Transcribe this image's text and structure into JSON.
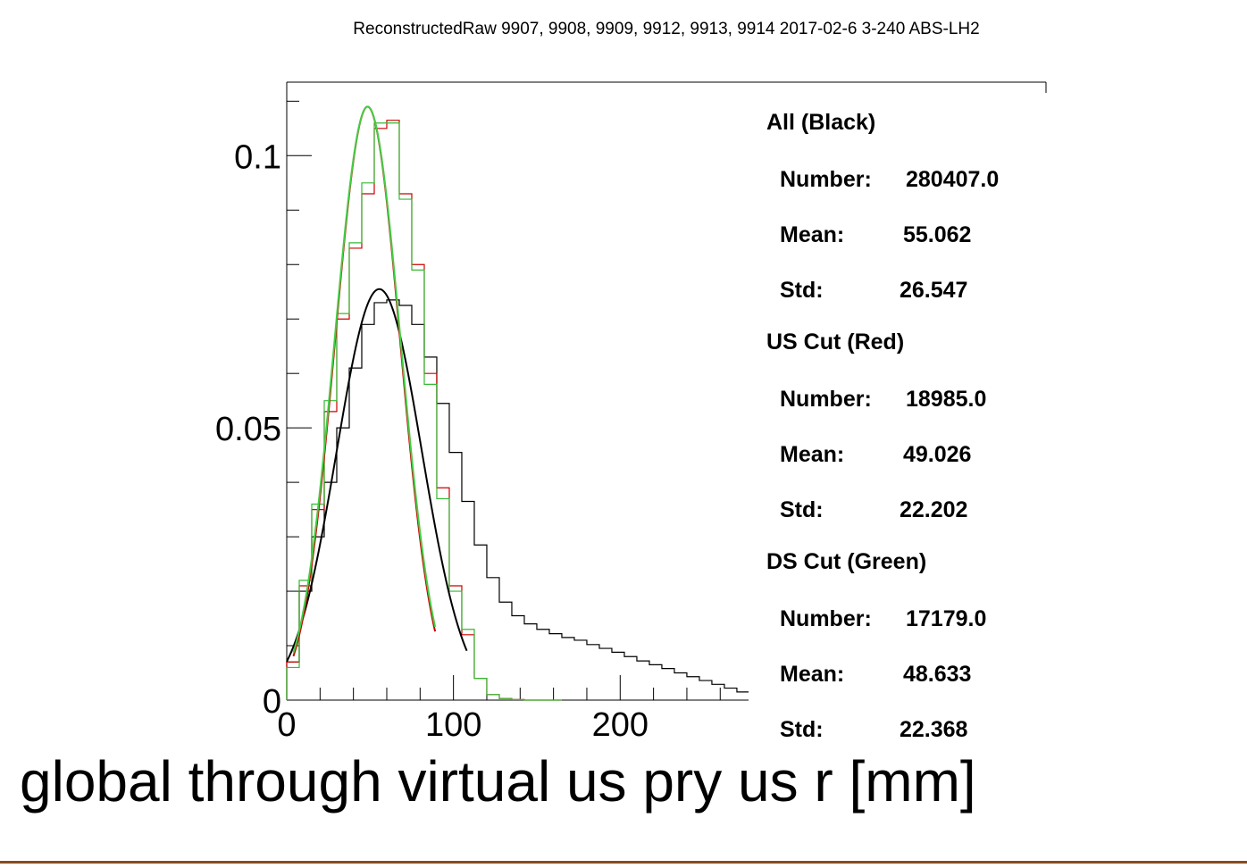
{
  "chart_data": {
    "type": "histogram",
    "title": "ReconstructedRaw 9907, 9908, 9909, 9912, 9913, 9914 2017-02-6 3-240 ABS-LH2",
    "xlabel": "global through virtual us pry us r [mm]",
    "ylabel": "",
    "xlim": [
      0,
      277
    ],
    "ylim": [
      0,
      0.1135
    ],
    "x_ticks": [
      0,
      100,
      200
    ],
    "y_ticks": [
      0,
      0.05,
      0.1
    ],
    "x_tick_labels": [
      "0",
      "100",
      "200"
    ],
    "y_tick_labels": [
      "0",
      "0.05",
      "0.1"
    ],
    "bin_width": 7.5,
    "series": [
      {
        "name": "All (Black)",
        "color": "#000000",
        "bin_start": 0,
        "values": [
          0.007,
          0.02,
          0.03,
          0.04,
          0.05,
          0.061,
          0.069,
          0.073,
          0.0735,
          0.0725,
          0.069,
          0.063,
          0.0545,
          0.0455,
          0.0365,
          0.0285,
          0.0225,
          0.018,
          0.0155,
          0.014,
          0.013,
          0.0122,
          0.0115,
          0.011,
          0.0102,
          0.0095,
          0.0088,
          0.008,
          0.0072,
          0.0065,
          0.0058,
          0.005,
          0.0043,
          0.0036,
          0.0029,
          0.0022,
          0.0015
        ]
      },
      {
        "name": "US Cut (Red)",
        "color": "#cc0000",
        "bin_start": 0,
        "values": [
          0.007,
          0.021,
          0.035,
          0.053,
          0.07,
          0.083,
          0.093,
          0.105,
          0.1065,
          0.093,
          0.08,
          0.06,
          0.039,
          0.021,
          0.012,
          0.004,
          0.001,
          0.0003,
          0.0001,
          0,
          0,
          0
        ]
      },
      {
        "name": "DS Cut (Green)",
        "color": "#33bb33",
        "bin_start": 0,
        "values": [
          0.006,
          0.022,
          0.036,
          0.055,
          0.071,
          0.084,
          0.095,
          0.106,
          0.106,
          0.092,
          0.079,
          0.058,
          0.037,
          0.02,
          0.013,
          0.004,
          0.001,
          0.0003,
          0.0001,
          0,
          0,
          0
        ]
      }
    ],
    "fits": [
      {
        "name": "All fit",
        "color": "#000000",
        "amplitude": 0.0755,
        "mean": 55.5,
        "sigma": 25.5,
        "range": [
          0,
          108
        ]
      },
      {
        "name": "US fit",
        "color": "#cc0000",
        "amplitude": 0.109,
        "mean": 48.5,
        "sigma": 19.5,
        "range": [
          4,
          89
        ]
      },
      {
        "name": "DS fit",
        "color": "#44cc44",
        "amplitude": 0.109,
        "mean": 48.5,
        "sigma": 19.8,
        "range": [
          4,
          89
        ]
      }
    ],
    "stats": [
      {
        "header": "All (Black)",
        "rows": [
          {
            "key": "Number:",
            "value": "280407.0"
          },
          {
            "key": "Mean:",
            "value": "55.062"
          },
          {
            "key": "Std:",
            "value": "26.547"
          }
        ]
      },
      {
        "header": "US Cut (Red)",
        "rows": [
          {
            "key": "Number:",
            "value": "18985.0"
          },
          {
            "key": "Mean:",
            "value": "49.026"
          },
          {
            "key": "Std:",
            "value": "22.202"
          }
        ]
      },
      {
        "header": "DS Cut (Green)",
        "rows": [
          {
            "key": "Number:",
            "value": "17179.0"
          },
          {
            "key": "Mean:",
            "value": "48.633"
          },
          {
            "key": "Std:",
            "value": "22.368"
          }
        ]
      }
    ]
  }
}
